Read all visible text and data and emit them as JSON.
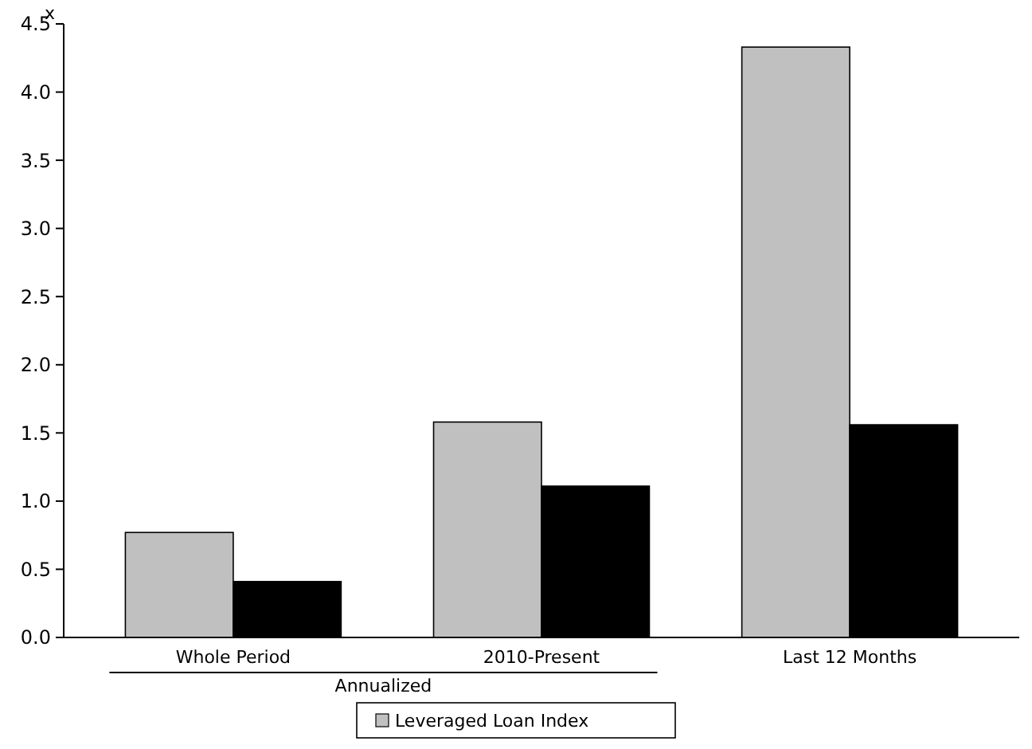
{
  "chart_data": {
    "type": "bar",
    "ylabel": "x",
    "categories": [
      "Whole Period",
      "2010-Present",
      "Last 12 Months"
    ],
    "series": [
      {
        "name": "Leveraged Loan Index",
        "color": "#c0c0c0",
        "values": [
          0.77,
          1.58,
          4.33
        ]
      },
      {
        "color": "#000000",
        "values": [
          0.41,
          1.11,
          1.56
        ]
      }
    ],
    "ylim": [
      0,
      4.5
    ],
    "yticks": [
      {
        "value": 0,
        "label": "0.0"
      },
      {
        "value": 0.5,
        "label": "0.5"
      },
      {
        "value": 1,
        "label": "1.0"
      },
      {
        "value": 1.5,
        "label": "1.5"
      },
      {
        "value": 2,
        "label": "2.0"
      },
      {
        "value": 2.5,
        "label": "2.5"
      },
      {
        "value": 3,
        "label": "3.0"
      },
      {
        "value": 3.5,
        "label": "3.5"
      },
      {
        "value": 4,
        "label": "4.0"
      },
      {
        "value": 4.5,
        "label": "4.5"
      }
    ],
    "annotations": [
      "Annualized"
    ],
    "legend": "bottom",
    "grid": false
  }
}
